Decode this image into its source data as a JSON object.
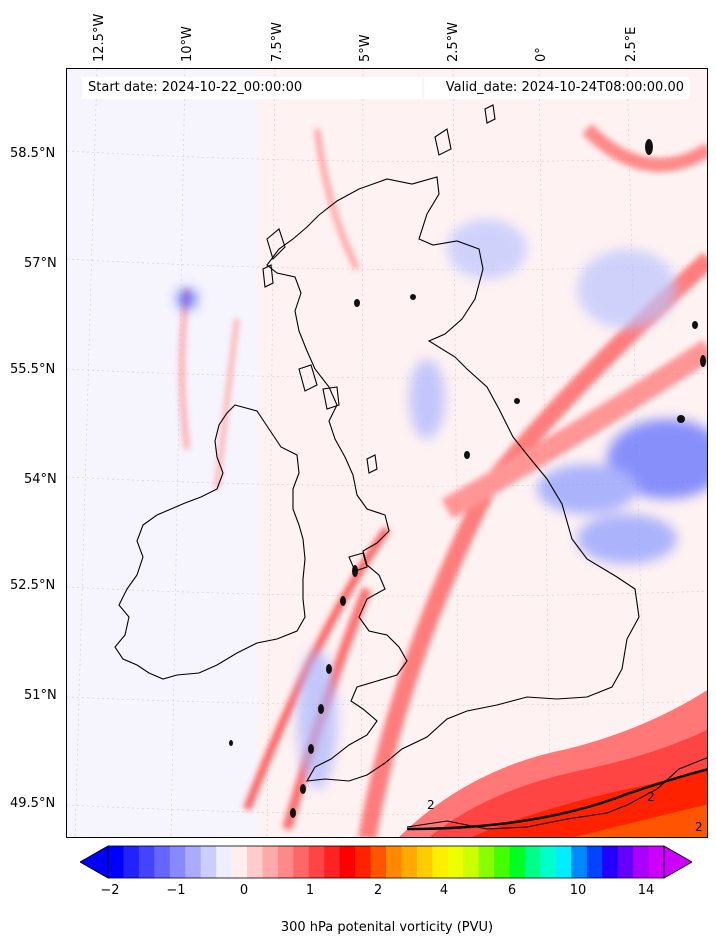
{
  "map": {
    "start_date": "Start date: 2024-10-22_00:00:00",
    "valid_date": "Valid_date: 2024-10-24T08:00:00.00",
    "lon_labels": [
      "12.5°W",
      "10°W",
      "7.5°W",
      "5°W",
      "2.5°W",
      "0°",
      "2.5°E"
    ],
    "lat_labels": [
      "58.5°N",
      "57°N",
      "55.5°N",
      "54°N",
      "52.5°N",
      "51°N",
      "49.5°N"
    ],
    "contour_labels": [
      "2",
      "2",
      "2"
    ],
    "coastline_color": "#000000",
    "field_colors": {
      "negative": "#0000ff",
      "neutral": "#ffffff",
      "positive": "#ff0000",
      "high": "#ff4400"
    }
  },
  "colorbar": {
    "label": "300 hPa potenital vorticity (PVU)",
    "ticks": [
      "−2",
      "−1",
      "0",
      "1",
      "2",
      "4",
      "6",
      "10",
      "14"
    ],
    "colors": [
      "#0000ff",
      "#2222ff",
      "#4444ff",
      "#6666ff",
      "#8888ff",
      "#aaaaff",
      "#ccccff",
      "#eeeeff",
      "#ffeeee",
      "#ffcccc",
      "#ffaaaa",
      "#ff8888",
      "#ff6666",
      "#ff4444",
      "#ff2222",
      "#ff0000",
      "#ff2200",
      "#ff5500",
      "#ff8800",
      "#ffaa00",
      "#ffcc00",
      "#ffee00",
      "#eeff00",
      "#ccff00",
      "#88ff00",
      "#44ff00",
      "#00ff22",
      "#00ff88",
      "#00ffcc",
      "#00eeff",
      "#0088ff",
      "#0044ff",
      "#2200ff",
      "#6600ff",
      "#aa00ff",
      "#cc00ff"
    ]
  }
}
